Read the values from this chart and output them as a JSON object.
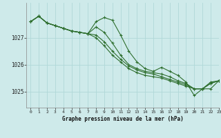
{
  "title": "Graphe pression niveau de la mer (hPa)",
  "bg_color": "#ceeaea",
  "grid_color": "#b0d8d8",
  "line_color": "#2d6e2d",
  "marker": "+",
  "markersize": 3,
  "linewidth": 0.8,
  "xlim": [
    -0.5,
    23
  ],
  "ylim": [
    1024.4,
    1028.3
  ],
  "yticks": [
    1025,
    1026,
    1027
  ],
  "xticks": [
    0,
    1,
    2,
    3,
    4,
    5,
    6,
    7,
    8,
    9,
    10,
    11,
    12,
    13,
    14,
    15,
    16,
    17,
    18,
    19,
    20,
    21,
    22,
    23
  ],
  "series": [
    [
      1027.6,
      1027.8,
      1027.55,
      1027.45,
      1027.35,
      1027.25,
      1027.2,
      1027.15,
      1027.6,
      1027.75,
      1027.65,
      1027.1,
      1026.5,
      1026.1,
      1025.85,
      1025.75,
      1025.9,
      1025.75,
      1025.6,
      1025.35,
      1024.85,
      1025.1,
      1025.1,
      1025.4
    ],
    [
      1027.6,
      1027.8,
      1027.55,
      1027.45,
      1027.35,
      1027.25,
      1027.2,
      1027.15,
      1027.4,
      1027.2,
      1026.8,
      1026.35,
      1026.0,
      1025.85,
      1025.75,
      1025.7,
      1025.65,
      1025.55,
      1025.4,
      1025.3,
      1025.1,
      1025.1,
      1025.35,
      1025.4
    ],
    [
      1027.6,
      1027.8,
      1027.55,
      1027.45,
      1027.35,
      1027.25,
      1027.2,
      1027.15,
      1027.1,
      1026.85,
      1026.5,
      1026.2,
      1025.95,
      1025.8,
      1025.7,
      1025.65,
      1025.55,
      1025.45,
      1025.35,
      1025.25,
      1025.1,
      1025.1,
      1025.3,
      1025.4
    ],
    [
      1027.6,
      1027.8,
      1027.55,
      1027.45,
      1027.35,
      1027.25,
      1027.2,
      1027.15,
      1027.0,
      1026.7,
      1026.35,
      1026.1,
      1025.85,
      1025.7,
      1025.6,
      1025.55,
      1025.5,
      1025.4,
      1025.3,
      1025.2,
      1025.1,
      1025.1,
      1025.3,
      1025.4
    ]
  ]
}
